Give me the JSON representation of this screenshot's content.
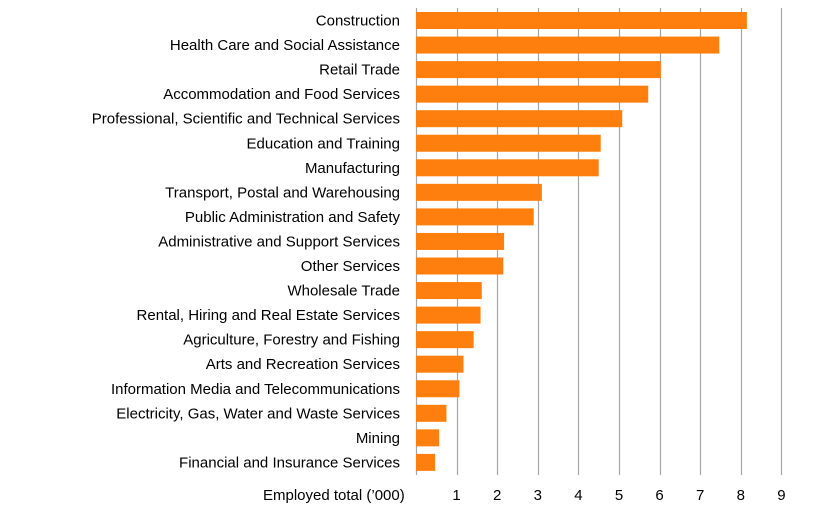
{
  "chart_data": {
    "type": "bar",
    "orientation": "horizontal",
    "categories": [
      "Construction",
      "Health Care and Social Assistance",
      "Retail Trade",
      "Accommodation and Food Services",
      "Professional, Scientific and Technical Services",
      "Education and Training",
      "Manufacturing",
      "Transport, Postal and Warehousing",
      "Public Administration and Safety",
      "Administrative and Support Services",
      "Other Services",
      "Wholesale Trade",
      "Rental, Hiring and Real Estate Services",
      "Agriculture, Forestry and Fishing",
      "Arts and Recreation Services",
      "Information Media and Telecommunications",
      "Electricity, Gas, Water and Waste Services",
      "Mining",
      "Financial and Insurance Services"
    ],
    "values": [
      8.15,
      7.47,
      6.03,
      5.72,
      5.08,
      4.55,
      4.5,
      3.1,
      2.9,
      2.17,
      2.15,
      1.62,
      1.59,
      1.42,
      1.17,
      1.07,
      0.75,
      0.57,
      0.47
    ],
    "title": "",
    "xlabel": "Employed total (’000)",
    "ylabel": "",
    "xlim": [
      0,
      9
    ],
    "xticks": [
      1,
      2,
      3,
      4,
      5,
      6,
      7,
      8,
      9
    ],
    "grid": "vertical",
    "legend": "none",
    "bar_color": "#FF7F0E",
    "grid_color": "#A6A6A6"
  }
}
